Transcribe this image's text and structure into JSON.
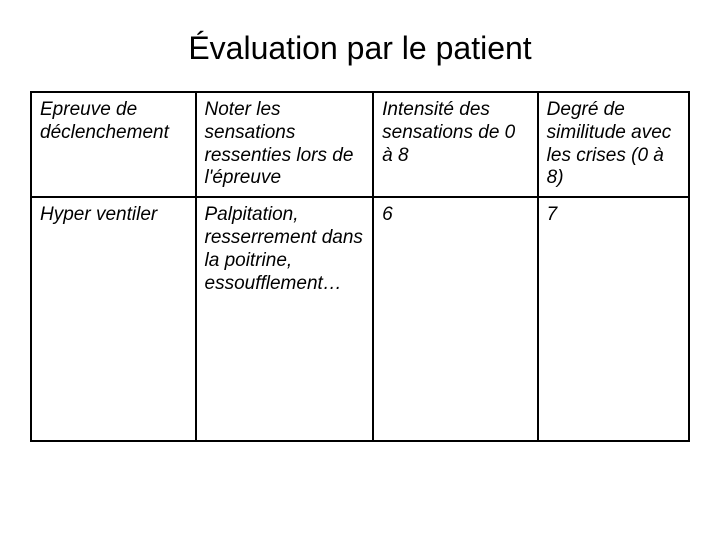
{
  "title": "Évaluation par le patient",
  "table": {
    "columns": [
      "c0",
      "c1",
      "c2",
      "c3"
    ],
    "header": [
      "Epreuve de déclenchement",
      "Noter les sensations ressenties lors de l'épreuve",
      "Intensité des sensations de 0 à 8",
      "Degré de similitude avec les crises  (0 à 8)"
    ],
    "rows": [
      [
        "Hyper ventiler",
        "Palpitation, resserrement dans la poitrine, essoufflement…",
        "6",
        "7"
      ]
    ],
    "border_color": "#000000",
    "background_color": "#ffffff",
    "font_color": "#000000",
    "header_font_style": "italic",
    "body_font_style": "italic",
    "font_size_pt": 19,
    "title_font_size_pt": 32
  }
}
